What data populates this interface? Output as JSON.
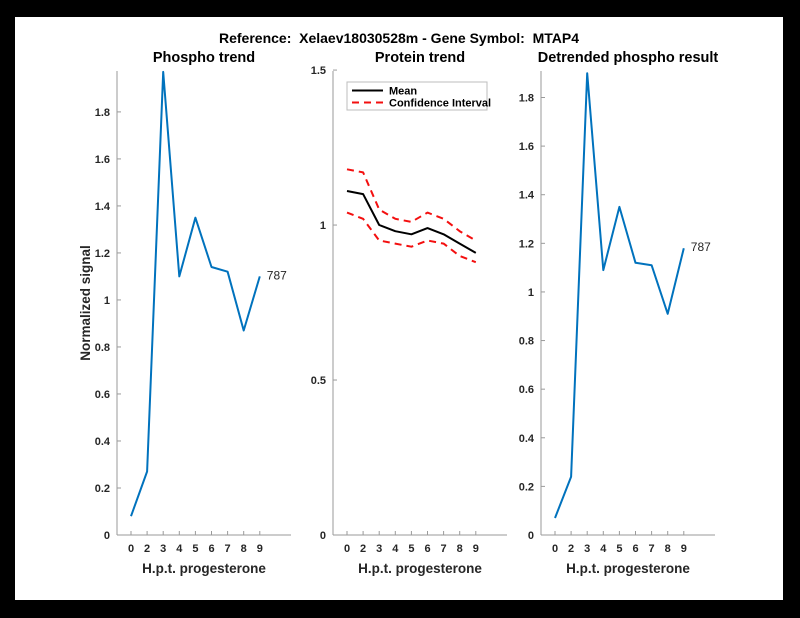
{
  "figure_title": "Reference:  Xelaev18030528m - Gene Symbol:  MTAP4",
  "colors": {
    "line_blue": "#0072BD",
    "mean_black": "#000000",
    "ci_red": "#f30f0f",
    "axis_line": "#9a9a9a",
    "text_dark": "#262626",
    "legend_border": "#bdbdbd",
    "background": "#ffffff",
    "page_border": "#000000"
  },
  "chart_data": [
    {
      "type": "line",
      "title": "Phospho trend",
      "xlabel": "H.p.t. progesterone",
      "ylabel": "Normalized signal",
      "x_categories": [
        "0",
        "2",
        "3",
        "4",
        "5",
        "6",
        "7",
        "8",
        "9"
      ],
      "yticks": [
        0,
        0.2,
        0.4,
        0.6,
        0.8,
        1,
        1.2,
        1.4,
        1.6,
        1.8
      ],
      "ylim": [
        0,
        1.974
      ],
      "grid": "off",
      "series": [
        {
          "name": "phospho-signal",
          "color_key": "line_blue",
          "style": "solid",
          "values": [
            0.08,
            0.27,
            1.97,
            1.1,
            1.35,
            1.14,
            1.12,
            0.87,
            1.1
          ]
        }
      ],
      "end_label": "787"
    },
    {
      "type": "line",
      "title": "Protein trend",
      "xlabel": "H.p.t. progesterone",
      "ylabel": "",
      "x_categories": [
        "0",
        "2",
        "3",
        "4",
        "5",
        "6",
        "7",
        "8",
        "9"
      ],
      "yticks": [
        0,
        0.5,
        1,
        1.5
      ],
      "ylim": [
        0,
        1.497
      ],
      "grid": "off",
      "legend": {
        "position": "top-left",
        "entries": [
          {
            "label": "Mean",
            "color_key": "mean_black",
            "style": "solid"
          },
          {
            "label": "Confidence Interval",
            "color_key": "ci_red",
            "style": "dashed"
          }
        ]
      },
      "series": [
        {
          "name": "mean",
          "color_key": "mean_black",
          "style": "solid",
          "values": [
            1.11,
            1.1,
            1.0,
            0.98,
            0.97,
            0.99,
            0.97,
            0.94,
            0.91
          ]
        },
        {
          "name": "ci-upper",
          "color_key": "ci_red",
          "style": "dashed",
          "values": [
            1.18,
            1.17,
            1.05,
            1.02,
            1.01,
            1.04,
            1.02,
            0.98,
            0.95
          ]
        },
        {
          "name": "ci-lower",
          "color_key": "ci_red",
          "style": "dashed",
          "values": [
            1.04,
            1.02,
            0.95,
            0.94,
            0.93,
            0.95,
            0.94,
            0.9,
            0.88
          ]
        }
      ]
    },
    {
      "type": "line",
      "title": "Detrended phospho result",
      "xlabel": "H.p.t. progesterone",
      "ylabel": "",
      "x_categories": [
        "0",
        "2",
        "3",
        "4",
        "5",
        "6",
        "7",
        "8",
        "9"
      ],
      "yticks": [
        0,
        0.2,
        0.4,
        0.6,
        0.8,
        1,
        1.2,
        1.4,
        1.6,
        1.8
      ],
      "ylim": [
        0,
        1.909
      ],
      "grid": "off",
      "series": [
        {
          "name": "detrended-phospho-signal",
          "color_key": "line_blue",
          "style": "solid",
          "values": [
            0.07,
            0.24,
            1.9,
            1.09,
            1.35,
            1.12,
            1.11,
            0.91,
            1.18
          ]
        }
      ],
      "end_label": "787"
    }
  ]
}
